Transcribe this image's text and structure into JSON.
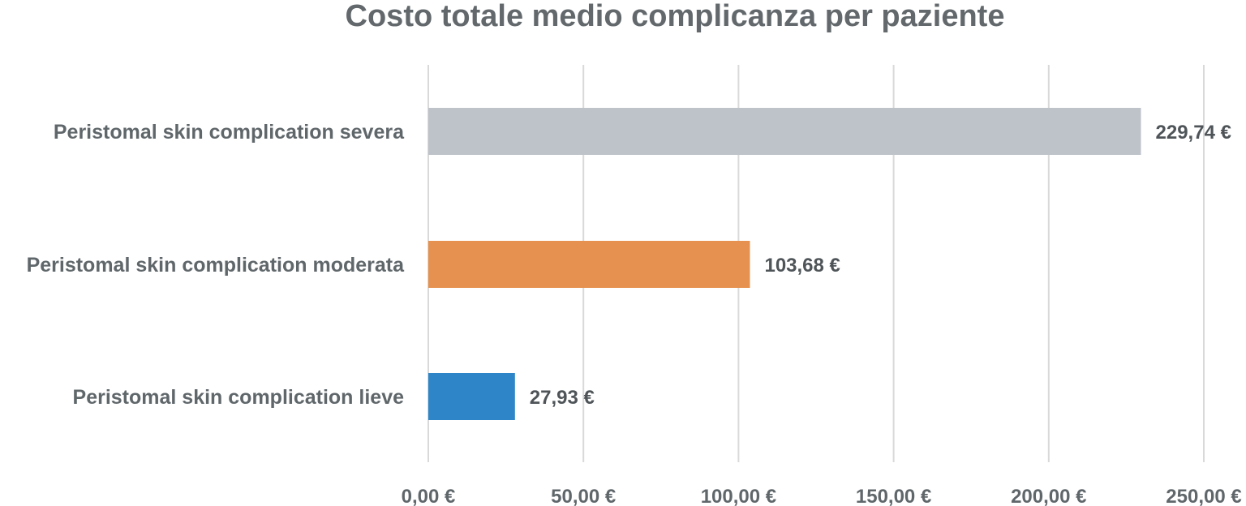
{
  "chart_data": {
    "type": "bar",
    "orientation": "horizontal",
    "title": "Costo totale medio complicanza per paziente",
    "categories": [
      "Peristomal skin complication severa",
      "Peristomal skin complication moderata",
      "Peristomal skin complication lieve"
    ],
    "values": [
      229.74,
      103.68,
      27.93
    ],
    "value_labels": [
      "229,74 €",
      "103,68 €",
      "27,93 €"
    ],
    "colors": [
      "#bec3ca",
      "#e6914f",
      "#2e85c7"
    ],
    "xlim": [
      0,
      250
    ],
    "x_ticks": [
      0,
      50,
      100,
      150,
      200,
      250
    ],
    "x_tick_labels": [
      "0,00 €",
      "50,00 €",
      "100,00 €",
      "150,00 €",
      "200,00 €",
      "250,00 €"
    ],
    "xlabel": "",
    "ylabel": "",
    "grid": "vertical",
    "legend": "none"
  }
}
